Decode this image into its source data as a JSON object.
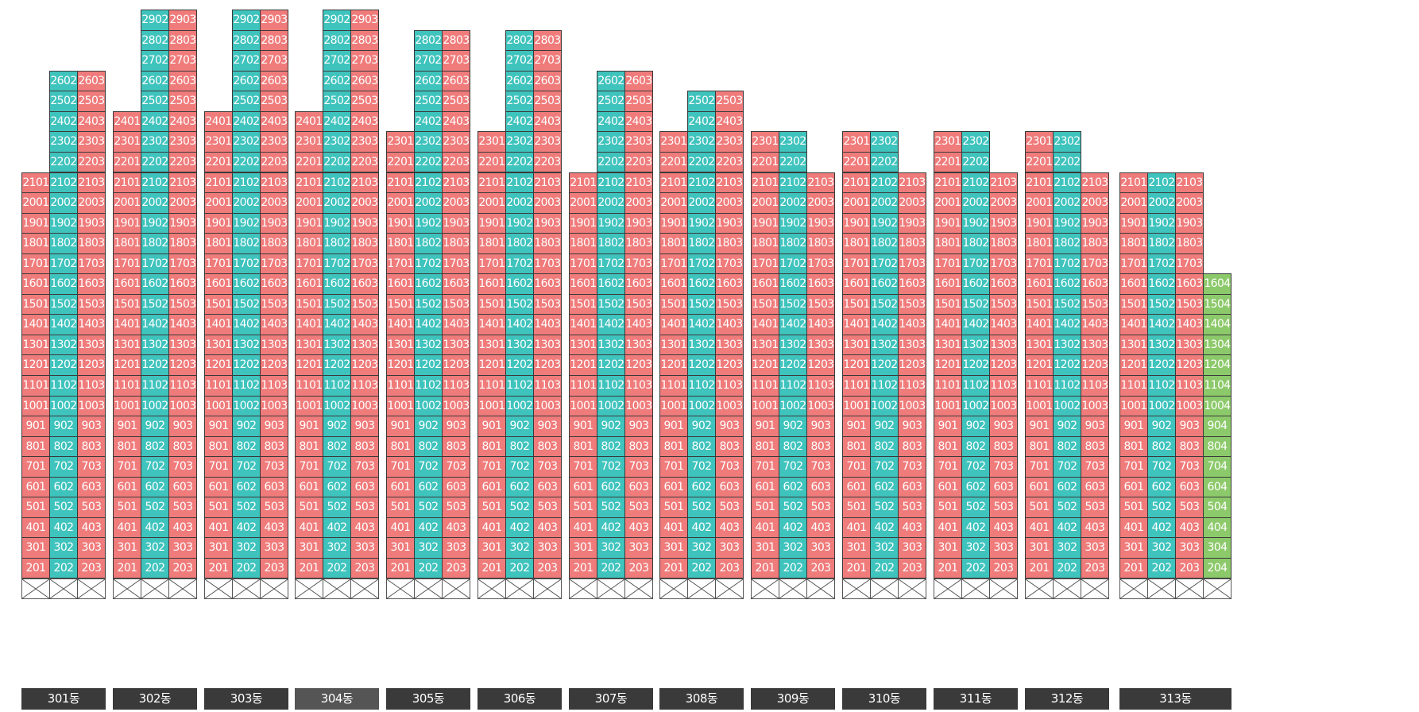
{
  "colors": {
    "pink": "#f07b7b",
    "teal": "#3fc3bd",
    "green": "#8cc96a",
    "border": "#3a3a3a",
    "label_bg": "#3a3a3a",
    "label_bg_selected": "#555555"
  },
  "buildings": [
    {
      "name": "301동",
      "columns": [
        {
          "line": "01",
          "color": "pink",
          "max_floor": 21
        },
        {
          "line": "02",
          "color": "teal",
          "max_floor": 26
        },
        {
          "line": "03",
          "color": "pink",
          "max_floor": 26
        }
      ]
    },
    {
      "name": "302동",
      "columns": [
        {
          "line": "01",
          "color": "pink",
          "max_floor": 24
        },
        {
          "line": "02",
          "color": "teal",
          "max_floor": 29
        },
        {
          "line": "03",
          "color": "pink",
          "max_floor": 29
        }
      ]
    },
    {
      "name": "303동",
      "columns": [
        {
          "line": "01",
          "color": "pink",
          "max_floor": 24
        },
        {
          "line": "02",
          "color": "teal",
          "max_floor": 29
        },
        {
          "line": "03",
          "color": "pink",
          "max_floor": 29
        }
      ]
    },
    {
      "name": "304동",
      "selected": true,
      "columns": [
        {
          "line": "01",
          "color": "pink",
          "max_floor": 24
        },
        {
          "line": "02",
          "color": "teal",
          "max_floor": 29
        },
        {
          "line": "03",
          "color": "pink",
          "max_floor": 29
        }
      ]
    },
    {
      "name": "305동",
      "columns": [
        {
          "line": "01",
          "color": "pink",
          "max_floor": 23
        },
        {
          "line": "02",
          "color": "teal",
          "max_floor": 28
        },
        {
          "line": "03",
          "color": "pink",
          "max_floor": 28
        }
      ]
    },
    {
      "name": "306동",
      "columns": [
        {
          "line": "01",
          "color": "pink",
          "max_floor": 23
        },
        {
          "line": "02",
          "color": "teal",
          "max_floor": 28
        },
        {
          "line": "03",
          "color": "pink",
          "max_floor": 28
        }
      ]
    },
    {
      "name": "307동",
      "columns": [
        {
          "line": "01",
          "color": "pink",
          "max_floor": 21
        },
        {
          "line": "02",
          "color": "teal",
          "max_floor": 26
        },
        {
          "line": "03",
          "color": "pink",
          "max_floor": 26
        }
      ]
    },
    {
      "name": "308동",
      "columns": [
        {
          "line": "01",
          "color": "pink",
          "max_floor": 23
        },
        {
          "line": "02",
          "color": "teal",
          "max_floor": 25
        },
        {
          "line": "03",
          "color": "pink",
          "max_floor": 25
        }
      ]
    },
    {
      "name": "309동",
      "columns": [
        {
          "line": "01",
          "color": "pink",
          "max_floor": 23
        },
        {
          "line": "02",
          "color": "teal",
          "max_floor": 23
        },
        {
          "line": "03",
          "color": "pink",
          "max_floor": 21
        }
      ]
    },
    {
      "name": "310동",
      "columns": [
        {
          "line": "01",
          "color": "pink",
          "max_floor": 23
        },
        {
          "line": "02",
          "color": "teal",
          "max_floor": 23
        },
        {
          "line": "03",
          "color": "pink",
          "max_floor": 21
        }
      ]
    },
    {
      "name": "311동",
      "columns": [
        {
          "line": "01",
          "color": "pink",
          "max_floor": 23
        },
        {
          "line": "02",
          "color": "teal",
          "max_floor": 23
        },
        {
          "line": "03",
          "color": "pink",
          "max_floor": 21
        }
      ]
    },
    {
      "name": "312동",
      "columns": [
        {
          "line": "01",
          "color": "pink",
          "max_floor": 23
        },
        {
          "line": "02",
          "color": "teal",
          "max_floor": 23
        },
        {
          "line": "03",
          "color": "pink",
          "max_floor": 21
        }
      ]
    },
    {
      "name": "313동",
      "columns": [
        {
          "line": "01",
          "color": "pink",
          "max_floor": 21
        },
        {
          "line": "02",
          "color": "teal",
          "max_floor": 21
        },
        {
          "line": "03",
          "color": "pink",
          "max_floor": 21
        },
        {
          "line": "04",
          "color": "green",
          "max_floor": 16
        }
      ]
    }
  ],
  "min_floor": 2
}
